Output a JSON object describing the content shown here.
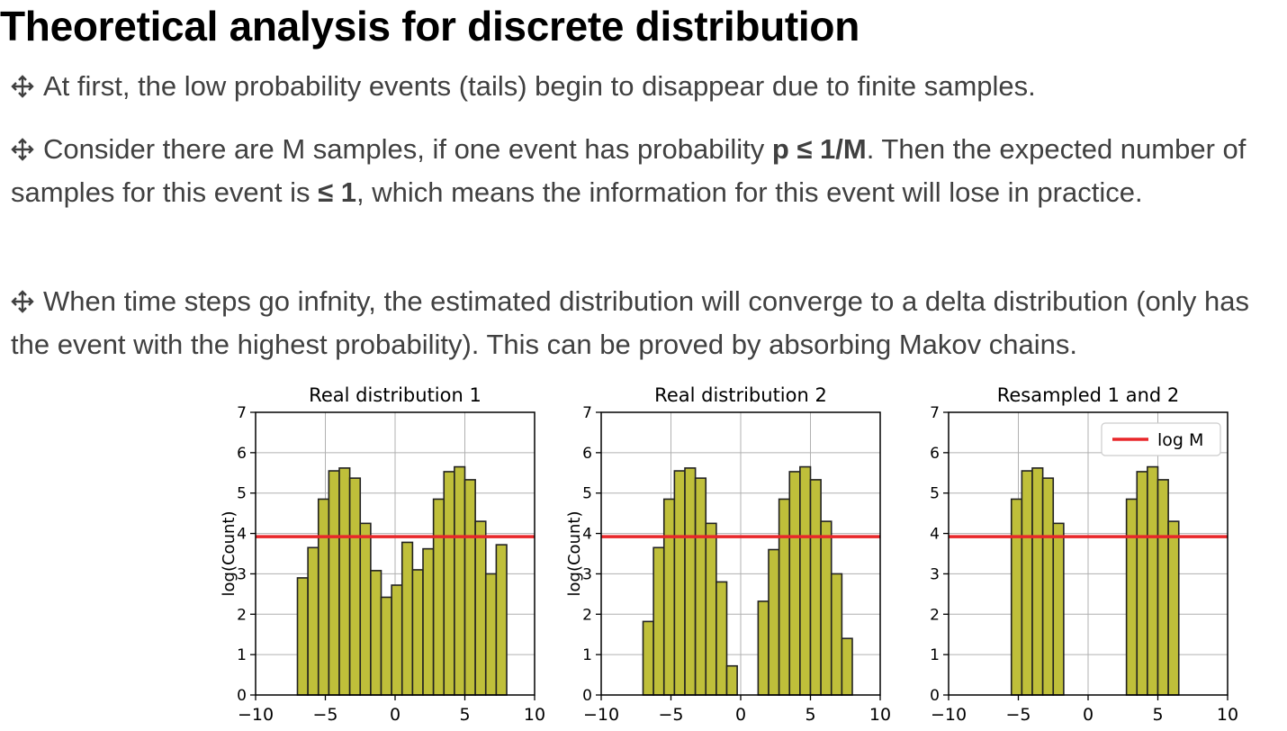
{
  "slide": {
    "title": "Theoretical analysis for discrete distribution",
    "bullet1": "At first, the low probability events (tails) begin to disappear due to finite samples.",
    "bullet2": {
      "part1": "Consider there are M samples, if one event has probability ",
      "bold1": "p ≤ 1/M",
      "part2": ". Then the expected number of samples for this event is ",
      "bold2": "≤ 1",
      "part3": ", which means the information for this event will lose in practice."
    },
    "bullet3": "When time steps go infnity, the estimated distribution will converge to a delta distribution (only has the event with the highest probability). This can be proved by absorbing Makov chains."
  },
  "chart_data": [
    {
      "type": "bar",
      "title": "Real distribution 1",
      "ylabel": "log(Count)",
      "xlim": [
        -10,
        10
      ],
      "ylim": [
        0,
        7
      ],
      "xticks": [
        "−10",
        "−5",
        "0",
        "5",
        "10"
      ],
      "yticks": [
        "0",
        "1",
        "2",
        "3",
        "4",
        "5",
        "6",
        "7"
      ],
      "bin_width": 0.75,
      "bin_start": -7.0,
      "values": [
        2.9,
        3.65,
        4.85,
        5.55,
        5.62,
        5.37,
        4.25,
        3.08,
        2.42,
        2.72,
        3.78,
        3.1,
        3.62,
        4.85,
        5.53,
        5.65,
        5.33,
        4.3,
        3.0,
        3.72
      ],
      "hline": 3.92,
      "legend": "",
      "bar_color": "#bfbf3a",
      "line_color": "#e8272a"
    },
    {
      "type": "bar",
      "title": "Real distribution 2",
      "ylabel": "log(Count)",
      "xlim": [
        -10,
        10
      ],
      "ylim": [
        0,
        7
      ],
      "xticks": [
        "−10",
        "−5",
        "0",
        "5",
        "10"
      ],
      "yticks": [
        "0",
        "1",
        "2",
        "3",
        "4",
        "5",
        "6",
        "7"
      ],
      "bin_width": 0.75,
      "bin_start": -7.0,
      "values": [
        1.82,
        3.65,
        4.85,
        5.55,
        5.62,
        5.37,
        4.25,
        2.8,
        0.72,
        null,
        null,
        2.32,
        3.6,
        4.85,
        5.53,
        5.65,
        5.33,
        4.3,
        3.0,
        1.4
      ],
      "hline": 3.92,
      "legend": "",
      "bar_color": "#bfbf3a",
      "line_color": "#e8272a"
    },
    {
      "type": "bar",
      "title": "Resampled 1 and 2",
      "ylabel": "",
      "xlim": [
        -10,
        10
      ],
      "ylim": [
        0,
        7
      ],
      "xticks": [
        "−10",
        "−5",
        "0",
        "5",
        "10"
      ],
      "yticks": [
        "0",
        "1",
        "2",
        "3",
        "4",
        "5",
        "6",
        "7"
      ],
      "bin_width": 0.75,
      "bin_start": -7.0,
      "values": [
        null,
        null,
        4.85,
        5.55,
        5.62,
        5.37,
        4.25,
        null,
        null,
        null,
        null,
        null,
        null,
        4.85,
        5.53,
        5.65,
        5.33,
        4.3,
        null,
        null
      ],
      "hline": 3.92,
      "legend": "log M",
      "bar_color": "#bfbf3a",
      "line_color": "#e8272a"
    }
  ]
}
